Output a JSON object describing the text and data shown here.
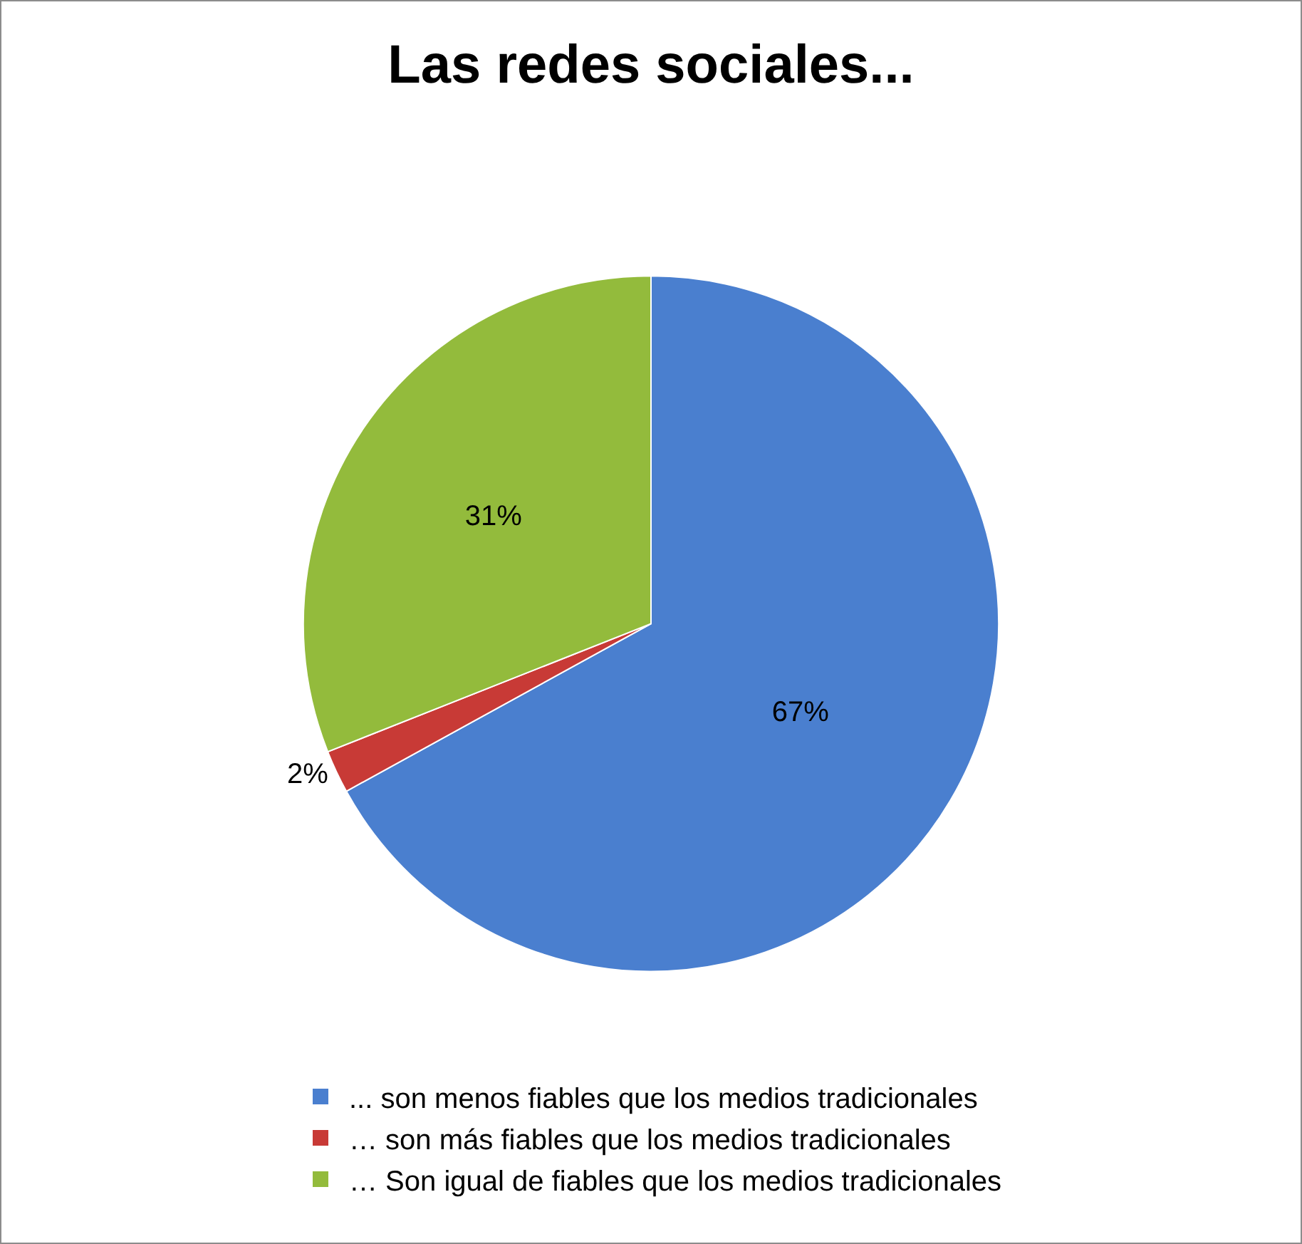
{
  "chart_data": {
    "type": "pie",
    "title": "Las redes sociales...",
    "categories": [
      "... son menos fiables que los medios tradicionales",
      "… son más fiables que los medios tradicionales",
      "… Son igual de fiables que los medios tradicionales"
    ],
    "values": [
      67,
      2,
      31
    ],
    "colors": [
      "#4a7fcf",
      "#c83a36",
      "#93bb3c"
    ],
    "value_labels": [
      "67%",
      "2%",
      "31%"
    ],
    "legend": "bottom"
  }
}
